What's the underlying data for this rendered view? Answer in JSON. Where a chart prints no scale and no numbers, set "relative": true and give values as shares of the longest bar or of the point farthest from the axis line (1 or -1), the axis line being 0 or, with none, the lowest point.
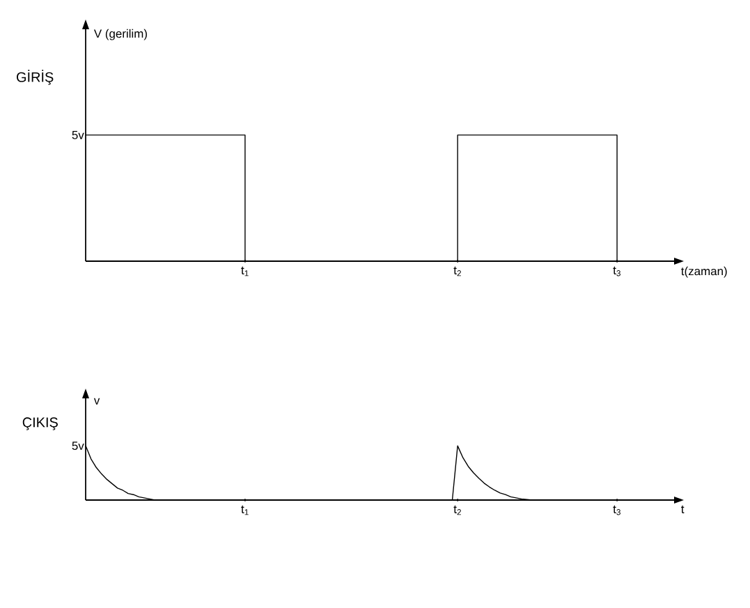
{
  "chart_data": [
    {
      "type": "step",
      "title": "GİRİŞ",
      "ylabel": "V (gerilim)",
      "xlabel": "t(zaman)",
      "relative": true,
      "categories": [
        null,
        null,
        null,
        "t$_{1}$",
        null,
        null,
        null,
        "t$_{2}$",
        null,
        null,
        "t$_{3}$",
        null
      ],
      "annotations": [
        "5v"
      ],
      "series": [
        {
          "color": "#000000",
          "values": [
            1,
            1,
            1,
            0,
            0,
            0,
            0,
            1,
            1,
            1,
            0,
            0
          ]
        }
      ]
    },
    {
      "type": "line",
      "title": "ÇIKIŞ",
      "ylabel": "v",
      "xlabel": "t",
      "relative": true,
      "categories": [
        null,
        null,
        null,
        null,
        null,
        null,
        null,
        null,
        null,
        null,
        null,
        null,
        null,
        null,
        null,
        null,
        null,
        null,
        null,
        null,
        null,
        null,
        null,
        null,
        null,
        null,
        null,
        null,
        null,
        null,
        "t$_{1}$",
        null,
        null,
        null,
        null,
        null,
        null,
        null,
        null,
        null,
        null,
        null,
        null,
        null,
        null,
        null,
        null,
        null,
        null,
        null,
        null,
        null,
        null,
        null,
        null,
        null,
        null,
        null,
        null,
        null,
        null,
        null,
        null,
        null,
        null,
        null,
        null,
        null,
        null,
        null,
        "t$_{2}$",
        null,
        null,
        null,
        null,
        null,
        null,
        null,
        null,
        null,
        null,
        null,
        null,
        null,
        null,
        null,
        null,
        null,
        null,
        null,
        null,
        null,
        null,
        null,
        null,
        null,
        null,
        null,
        null,
        null,
        "t$_{3}$",
        null,
        null,
        null,
        null,
        null,
        null,
        null,
        null,
        null,
        null,
        null
      ],
      "annotations": [
        "5v"
      ],
      "series": [
        {
          "color": "#000000",
          "values": [
            1,
            0.76,
            0.6,
            0.48,
            0.38,
            0.3,
            0.22,
            0.18,
            0.12,
            0.1,
            0.06,
            0.04,
            0.02,
            0,
            0,
            0,
            0,
            0,
            0,
            0,
            0,
            0,
            0,
            0,
            0,
            0,
            0,
            0,
            0,
            0,
            0,
            0,
            0,
            0,
            0,
            0,
            0,
            0,
            0,
            0,
            0,
            0,
            0,
            0,
            0,
            0,
            0,
            0,
            0,
            0,
            0,
            0,
            0,
            0,
            0,
            0,
            0,
            0,
            0,
            0,
            0,
            0,
            0,
            0,
            0,
            0,
            0,
            0,
            0,
            0,
            1,
            0.78,
            0.62,
            0.5,
            0.4,
            0.31,
            0.24,
            0.18,
            0.13,
            0.1,
            0.06,
            0.04,
            0.02,
            0.01,
            0,
            0,
            0,
            0,
            0,
            0,
            0,
            0,
            0,
            0,
            0,
            0,
            0,
            0,
            0,
            0,
            0,
            0,
            0,
            0,
            0,
            0,
            0,
            0,
            0,
            0,
            0,
            0
          ]
        }
      ]
    }
  ]
}
